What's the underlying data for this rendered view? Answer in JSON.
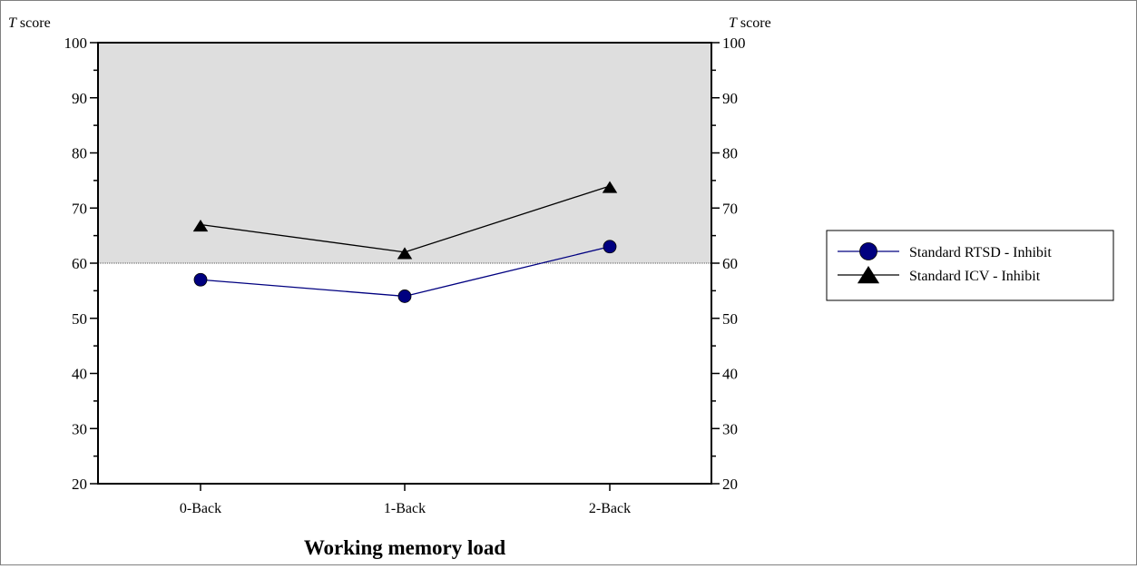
{
  "chart_data": {
    "type": "line",
    "categories": [
      "0-Back",
      "1-Back",
      "2-Back"
    ],
    "series": [
      {
        "name": "Standard RTSD - Inhibit",
        "values": [
          57,
          54,
          63
        ],
        "color": "#000080",
        "marker": "circle"
      },
      {
        "name": "Standard ICV - Inhibit",
        "values": [
          67,
          62,
          74
        ],
        "color": "#000000",
        "marker": "triangle"
      }
    ],
    "xlabel": "Working memory load",
    "ylabel_left": {
      "italic": "T",
      "rest": " score"
    },
    "ylabel_right": {
      "italic": "T",
      "rest": " score"
    },
    "ylim": [
      20,
      100
    ],
    "yticks": [
      20,
      30,
      40,
      50,
      60,
      70,
      80,
      90,
      100
    ],
    "yminor_step": 5,
    "reference_line": 60,
    "shaded_region": {
      "from": 60,
      "to": 100,
      "color": "#dedede"
    },
    "legend_position": "right"
  }
}
